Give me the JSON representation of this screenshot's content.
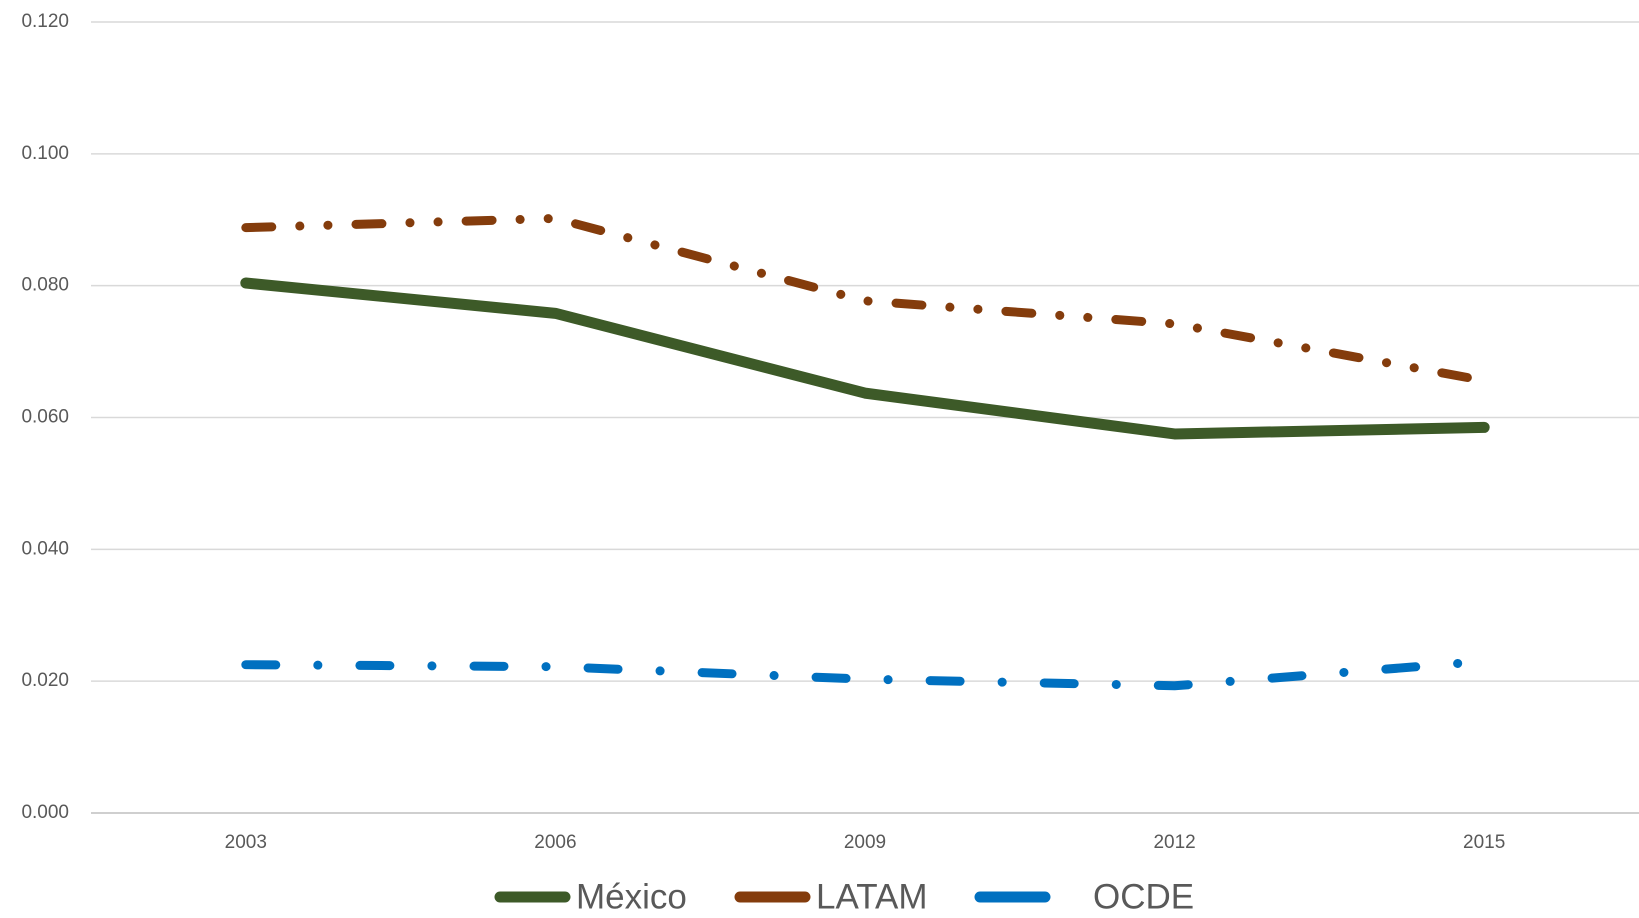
{
  "chart_data": {
    "type": "line",
    "categories": [
      "2003",
      "2006",
      "2009",
      "2012",
      "2015"
    ],
    "series": [
      {
        "name": "México",
        "color": "#3d5a28",
        "line_style": "solid",
        "values": [
          0.0804,
          0.0758,
          0.0637,
          0.0575,
          0.0585
        ]
      },
      {
        "name": "LATAM",
        "color": "#843c0c",
        "line_style": "dash-dot-dot",
        "values": [
          0.0888,
          0.0902,
          0.0777,
          0.0742,
          0.0656
        ]
      },
      {
        "name": "OCDE",
        "color": "#0070c0",
        "line_style": "dash-dot",
        "values": [
          0.0225,
          0.0222,
          0.0203,
          0.0193,
          0.023
        ]
      }
    ],
    "ylim": [
      0,
      0.12
    ],
    "yticks": [
      {
        "value": 0,
        "label": "0.000"
      },
      {
        "value": 0.02,
        "label": "0.020"
      },
      {
        "value": 0.04,
        "label": "0.040"
      },
      {
        "value": 0.06,
        "label": "0.060"
      },
      {
        "value": 0.08,
        "label": "0.080"
      },
      {
        "value": 0.1,
        "label": "0.100"
      },
      {
        "value": 0.12,
        "label": "0.120"
      }
    ],
    "grid": true,
    "legend": "bottom"
  }
}
